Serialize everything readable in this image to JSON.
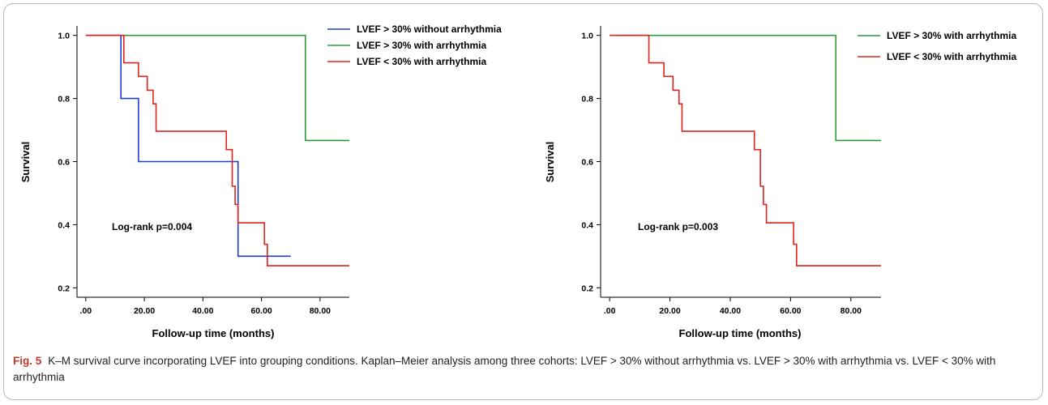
{
  "caption": {
    "label": "Fig. 5",
    "text": "K–M survival curve incorporating LVEF into grouping conditions. Kaplan–Meier analysis among three cohorts: LVEF > 30% without arrhythmia vs. LVEF > 30% with arrhythmia vs. LVEF < 30% with arrhythmia"
  },
  "chart_data": [
    {
      "type": "line",
      "step": true,
      "xlabel": "Follow-up time (months)",
      "ylabel": "Survival",
      "xlim": [
        -3,
        90
      ],
      "ylim": [
        0.17,
        1.03
      ],
      "xticks": [
        0,
        20,
        40,
        60,
        80
      ],
      "xtick_labels": [
        ".00",
        "20.00",
        "40.00",
        "60.00",
        "80.00"
      ],
      "yticks": [
        0.2,
        0.4,
        0.6,
        0.8,
        1.0
      ],
      "ytick_labels": [
        "0.2",
        "0.4",
        "0.6",
        "0.8",
        "1.0"
      ],
      "grid": false,
      "legend_position": "top-right",
      "annotation": "Log-rank p=0.004",
      "series": [
        {
          "name": "LVEF > 30% without arrhythmia",
          "color": "#1f3fd1",
          "x": [
            0,
            12,
            12,
            18,
            18,
            52,
            52,
            70
          ],
          "y": [
            1.0,
            1.0,
            0.8,
            0.8,
            0.6,
            0.6,
            0.3,
            0.3
          ]
        },
        {
          "name": "LVEF > 30% with arrhythmia",
          "color": "#2a9a3a",
          "x": [
            0,
            75,
            75,
            90
          ],
          "y": [
            1.0,
            1.0,
            0.667,
            0.667
          ]
        },
        {
          "name": "LVEF < 30% with arrhythmia",
          "color": "#e3231b",
          "x": [
            0,
            13,
            13,
            18,
            18,
            21,
            21,
            23,
            23,
            24,
            24,
            48,
            48,
            50,
            50,
            51,
            51,
            52,
            52,
            61,
            61,
            62,
            62,
            90
          ],
          "y": [
            1.0,
            1.0,
            0.913,
            0.913,
            0.87,
            0.87,
            0.826,
            0.826,
            0.783,
            0.783,
            0.696,
            0.696,
            0.638,
            0.638,
            0.522,
            0.522,
            0.464,
            0.464,
            0.406,
            0.406,
            0.338,
            0.338,
            0.27,
            0.27
          ]
        }
      ]
    },
    {
      "type": "line",
      "step": true,
      "xlabel": "Follow-up time (months)",
      "ylabel": "Survival",
      "xlim": [
        -3,
        90
      ],
      "ylim": [
        0.17,
        1.03
      ],
      "xticks": [
        0,
        20,
        40,
        60,
        80
      ],
      "xtick_labels": [
        ".00",
        "20.00",
        "40.00",
        "60.00",
        "80.00"
      ],
      "yticks": [
        0.2,
        0.4,
        0.6,
        0.8,
        1.0
      ],
      "ytick_labels": [
        "0.2",
        "0.4",
        "0.6",
        "0.8",
        "1.0"
      ],
      "grid": false,
      "legend_position": "top-right",
      "annotation": "Log-rank p=0.003",
      "series": [
        {
          "name": "LVEF > 30% with arrhythmia",
          "color": "#2a9a3a",
          "x": [
            0,
            75,
            75,
            90
          ],
          "y": [
            1.0,
            1.0,
            0.667,
            0.667
          ]
        },
        {
          "name": "LVEF < 30% with arrhythmia",
          "color": "#e3231b",
          "x": [
            0,
            13,
            13,
            18,
            18,
            21,
            21,
            23,
            23,
            24,
            24,
            48,
            48,
            50,
            50,
            51,
            51,
            52,
            52,
            61,
            61,
            62,
            62,
            90
          ],
          "y": [
            1.0,
            1.0,
            0.913,
            0.913,
            0.87,
            0.87,
            0.826,
            0.826,
            0.783,
            0.783,
            0.696,
            0.696,
            0.638,
            0.638,
            0.522,
            0.522,
            0.464,
            0.464,
            0.406,
            0.406,
            0.338,
            0.338,
            0.27,
            0.27
          ]
        }
      ]
    }
  ]
}
